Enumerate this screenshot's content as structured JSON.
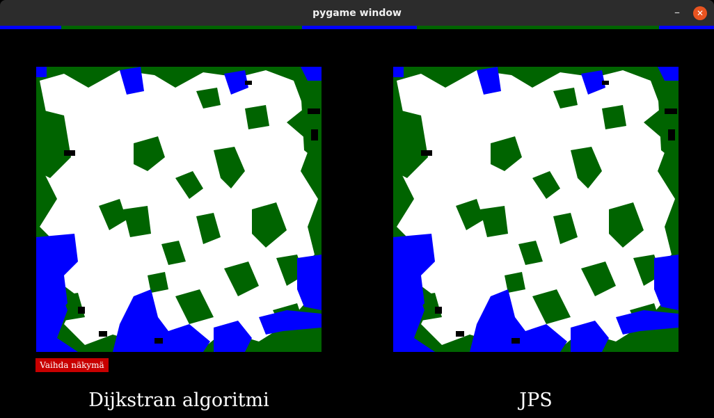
{
  "window": {
    "title": "pygame window",
    "minimize_symbol": "–",
    "close_symbol": "✕"
  },
  "controls": {
    "switch_view_label": "Vaihda näkymä"
  },
  "panels": [
    {
      "caption": "Dijkstran algoritmi"
    },
    {
      "caption": "JPS"
    }
  ],
  "colors": {
    "background": "#000000",
    "open_terrain": "#ffffff",
    "forest": "#006400",
    "water": "#0000ff",
    "water_light": "#1a32e6",
    "wall": "#000000",
    "button": "#c80000",
    "progress_blue": "#0000ff",
    "progress_green": "#006400",
    "titlebar": "#2c2c2c",
    "close_button": "#e95420"
  },
  "icons": {
    "minimize": "minimize-icon",
    "close": "close-icon"
  }
}
